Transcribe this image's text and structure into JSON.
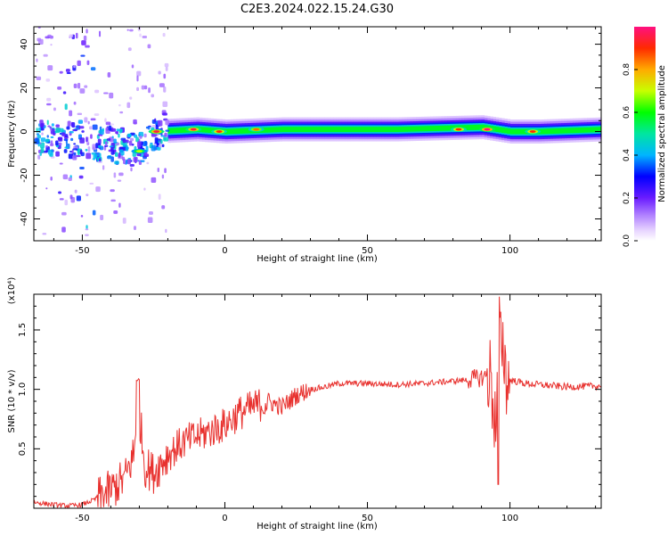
{
  "title": "C2E3.2024.022.15.24.G30",
  "chart_data": [
    {
      "type": "heatmap",
      "xlabel": "Height of straight line (km)",
      "ylabel": "Frequency (Hz)",
      "xlim": [
        -67,
        132
      ],
      "ylim": [
        -50,
        48
      ],
      "xticks": [
        "-50",
        "0",
        "50",
        "100"
      ],
      "xtick_values": [
        -50,
        0,
        50,
        100
      ],
      "yticks": [
        "40",
        "20",
        "0",
        "-20",
        "-40"
      ],
      "ytick_values": [
        40,
        20,
        0,
        -20,
        -40
      ],
      "colorbar": {
        "label": "Normalized spectral amplitude",
        "ticks": [
          "0.0",
          "0.2",
          "0.4",
          "0.6",
          "0.8"
        ],
        "tick_values": [
          0.0,
          0.2,
          0.4,
          0.6,
          0.8
        ],
        "range": [
          0,
          1
        ]
      },
      "ridge": [
        {
          "x": -65,
          "f": -3
        },
        {
          "x": -55,
          "f": -4
        },
        {
          "x": -50,
          "f": -3
        },
        {
          "x": -45,
          "f": -5
        },
        {
          "x": -40,
          "f": -6
        },
        {
          "x": -30,
          "f": -9
        },
        {
          "x": -25,
          "f": 0
        },
        {
          "x": -10,
          "f": 1
        },
        {
          "x": 0,
          "f": 0
        },
        {
          "x": 20,
          "f": 1
        },
        {
          "x": 60,
          "f": 1
        },
        {
          "x": 90,
          "f": 2
        },
        {
          "x": 100,
          "f": 0
        },
        {
          "x": 110,
          "f": 0
        },
        {
          "x": 132,
          "f": 1
        }
      ],
      "peaks": [
        {
          "x": -24,
          "f": 0,
          "amp": 0.95
        },
        {
          "x": -11,
          "f": 1,
          "amp": 0.95
        },
        {
          "x": -2,
          "f": 0,
          "amp": 0.9
        },
        {
          "x": 11,
          "f": 1,
          "amp": 0.85
        },
        {
          "x": 82,
          "f": 1,
          "amp": 0.9
        },
        {
          "x": 92,
          "f": 1,
          "amp": 1.0
        },
        {
          "x": 108,
          "f": 0,
          "amp": 0.9
        },
        {
          "x": -30,
          "f": -9,
          "amp": 0.7
        }
      ],
      "noise_region": {
        "x_min": -67,
        "x_max": -20,
        "f_min": -50,
        "f_max": 48
      }
    },
    {
      "type": "line",
      "xlabel": "Height of straight line (km)",
      "ylabel": "SNR (10 * v/v)",
      "y_multiplier": "(x10⁴)",
      "xlim": [
        -67,
        132
      ],
      "ylim": [
        0,
        1.8
      ],
      "xticks": [
        "-50",
        "0",
        "50",
        "100"
      ],
      "xtick_values": [
        -50,
        0,
        50,
        100
      ],
      "yticks": [
        "0.5",
        "1.0",
        "1.5"
      ],
      "ytick_values": [
        0.5,
        1.0,
        1.5
      ],
      "color": "#e8312e",
      "series": [
        {
          "x": [
            -67,
            -60,
            -55,
            -50,
            -45,
            -40,
            -35,
            -32,
            -30,
            -28,
            -25,
            -20,
            -15,
            -10,
            -5,
            0,
            5,
            10,
            15,
            20,
            25,
            30,
            35,
            40,
            50,
            60,
            70,
            80,
            85,
            90,
            93,
            95,
            97,
            99,
            100,
            105,
            110,
            120,
            132
          ],
          "values": [
            0.05,
            0.03,
            0.02,
            0.03,
            0.08,
            0.15,
            0.25,
            0.45,
            0.8,
            0.35,
            0.3,
            0.45,
            0.55,
            0.6,
            0.65,
            0.7,
            0.8,
            0.85,
            0.9,
            0.85,
            0.95,
            1.0,
            1.02,
            1.05,
            1.05,
            1.04,
            1.05,
            1.07,
            1.08,
            1.1,
            1.12,
            0.7,
            1.5,
            1.05,
            1.08,
            1.05,
            1.04,
            1.02,
            1.03
          ]
        }
      ]
    }
  ]
}
